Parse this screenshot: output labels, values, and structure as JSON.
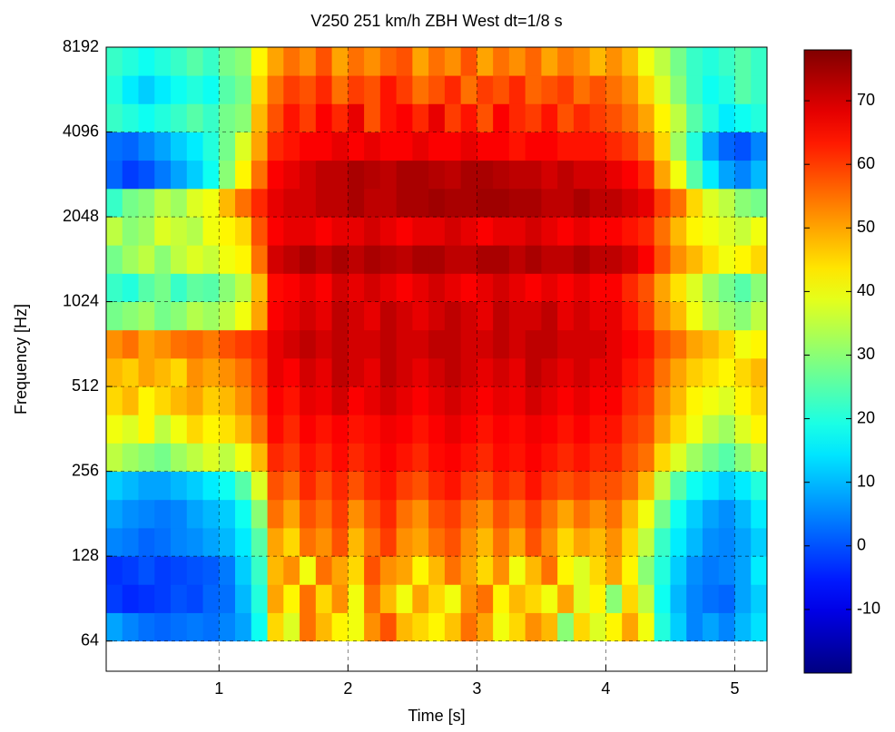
{
  "chart_data": {
    "type": "heatmap",
    "title": "V250 251 km/h ZBH West dt=1/8 s",
    "x_label": "Time [s]",
    "y_label": "Frequency [Hz]",
    "colormap": "jet",
    "yscale": "log2",
    "grid": true,
    "xlim": [
      0.125,
      5.25
    ],
    "xticks": [
      1,
      2,
      3,
      4,
      5
    ],
    "ylim": [
      50,
      8192
    ],
    "yticks": [
      64,
      128,
      256,
      512,
      1024,
      2048,
      4096,
      8192
    ],
    "clim": [
      -20,
      78
    ],
    "cticks": [
      -10,
      0,
      10,
      20,
      30,
      40,
      50,
      60,
      70
    ],
    "xbins": [
      0.125,
      0.25,
      0.375,
      0.5,
      0.625,
      0.75,
      0.875,
      1,
      1.125,
      1.25,
      1.375,
      1.5,
      1.625,
      1.75,
      1.875,
      2,
      2.125,
      2.25,
      2.375,
      2.5,
      2.625,
      2.75,
      2.875,
      3,
      3.125,
      3.25,
      3.375,
      3.5,
      3.625,
      3.75,
      3.875,
      4,
      4.125,
      4.25,
      4.375,
      4.5,
      4.625,
      4.75,
      4.875,
      5,
      5.125,
      5.25
    ],
    "ybins": [
      64,
      80.63,
      101.59,
      128,
      161.27,
      203.19,
      256,
      322.54,
      406.37,
      512,
      645.08,
      812.75,
      1024,
      1290.16,
      1625.5,
      2048,
      2580.3,
      3250.99,
      4096,
      5160.6,
      6501.99,
      8192
    ],
    "values": [
      [
        8,
        5,
        3,
        2,
        3,
        4,
        3,
        5,
        8,
        18,
        45,
        38,
        55,
        48,
        42,
        40,
        52,
        58,
        48,
        45,
        42,
        47,
        55,
        50,
        40,
        45,
        52,
        48,
        30,
        45,
        38,
        42,
        50,
        40,
        20,
        12,
        5,
        8,
        5,
        10,
        14
      ],
      [
        -2,
        -4,
        -3,
        -2,
        0,
        -1,
        2,
        3,
        10,
        20,
        50,
        42,
        55,
        45,
        52,
        40,
        55,
        48,
        40,
        50,
        45,
        40,
        52,
        55,
        42,
        48,
        45,
        40,
        50,
        38,
        42,
        30,
        45,
        35,
        18,
        10,
        5,
        3,
        2,
        8,
        12
      ],
      [
        -3,
        -2,
        0,
        -2,
        -1,
        0,
        1,
        4,
        12,
        22,
        48,
        52,
        40,
        55,
        50,
        45,
        58,
        52,
        50,
        42,
        48,
        55,
        50,
        45,
        52,
        40,
        48,
        55,
        42,
        38,
        45,
        50,
        42,
        30,
        20,
        12,
        6,
        4,
        5,
        8,
        15
      ],
      [
        5,
        4,
        2,
        3,
        5,
        6,
        8,
        10,
        15,
        25,
        50,
        45,
        55,
        52,
        58,
        48,
        55,
        60,
        52,
        50,
        55,
        58,
        52,
        48,
        55,
        50,
        58,
        52,
        45,
        50,
        48,
        52,
        45,
        35,
        22,
        15,
        10,
        6,
        5,
        8,
        12
      ],
      [
        8,
        6,
        5,
        4,
        5,
        8,
        10,
        12,
        18,
        30,
        55,
        50,
        58,
        55,
        60,
        52,
        58,
        62,
        55,
        52,
        58,
        60,
        55,
        52,
        58,
        55,
        60,
        55,
        50,
        55,
        52,
        55,
        48,
        40,
        28,
        18,
        12,
        8,
        6,
        10,
        15
      ],
      [
        12,
        10,
        8,
        8,
        10,
        12,
        15,
        18,
        25,
        38,
        58,
        55,
        62,
        58,
        62,
        58,
        62,
        64,
        60,
        58,
        62,
        64,
        60,
        58,
        62,
        60,
        64,
        60,
        58,
        60,
        58,
        58,
        55,
        48,
        35,
        25,
        18,
        15,
        12,
        15,
        20
      ],
      [
        35,
        32,
        30,
        28,
        32,
        35,
        38,
        35,
        40,
        48,
        62,
        60,
        64,
        62,
        65,
        62,
        64,
        66,
        64,
        62,
        65,
        66,
        64,
        62,
        65,
        64,
        66,
        64,
        62,
        64,
        62,
        62,
        58,
        55,
        45,
        38,
        32,
        28,
        25,
        30,
        35
      ],
      [
        40,
        38,
        42,
        35,
        40,
        45,
        42,
        44,
        48,
        55,
        65,
        62,
        66,
        64,
        66,
        64,
        65,
        67,
        66,
        64,
        66,
        68,
        66,
        64,
        66,
        65,
        67,
        66,
        64,
        66,
        64,
        64,
        60,
        58,
        50,
        45,
        40,
        35,
        32,
        38,
        42
      ],
      [
        45,
        48,
        42,
        45,
        48,
        50,
        46,
        48,
        52,
        58,
        66,
        64,
        68,
        67,
        70,
        66,
        68,
        70,
        68,
        66,
        68,
        70,
        68,
        66,
        68,
        67,
        70,
        68,
        66,
        68,
        66,
        66,
        62,
        60,
        52,
        48,
        42,
        40,
        38,
        42,
        45
      ],
      [
        48,
        46,
        50,
        48,
        45,
        52,
        50,
        52,
        55,
        60,
        68,
        66,
        70,
        68,
        72,
        70,
        68,
        72,
        70,
        68,
        70,
        72,
        70,
        68,
        70,
        68,
        72,
        70,
        68,
        70,
        68,
        68,
        64,
        62,
        55,
        50,
        46,
        44,
        42,
        45,
        48
      ],
      [
        52,
        55,
        50,
        52,
        55,
        56,
        54,
        58,
        60,
        62,
        68,
        70,
        72,
        70,
        72,
        70,
        70,
        72,
        70,
        70,
        72,
        72,
        70,
        70,
        72,
        70,
        72,
        72,
        70,
        70,
        70,
        68,
        66,
        64,
        58,
        55,
        50,
        48,
        45,
        40,
        42
      ],
      [
        28,
        30,
        32,
        28,
        30,
        34,
        32,
        35,
        40,
        50,
        66,
        68,
        70,
        68,
        72,
        70,
        68,
        72,
        70,
        68,
        70,
        72,
        70,
        68,
        72,
        70,
        70,
        72,
        68,
        70,
        68,
        68,
        64,
        60,
        52,
        48,
        40,
        35,
        32,
        30,
        35
      ],
      [
        22,
        20,
        25,
        28,
        22,
        26,
        25,
        30,
        35,
        48,
        65,
        66,
        68,
        66,
        70,
        68,
        70,
        68,
        66,
        68,
        70,
        68,
        66,
        68,
        70,
        68,
        66,
        68,
        66,
        68,
        66,
        66,
        62,
        58,
        50,
        44,
        38,
        32,
        28,
        25,
        30
      ],
      [
        28,
        32,
        35,
        30,
        35,
        38,
        36,
        40,
        42,
        55,
        70,
        72,
        74,
        72,
        74,
        72,
        74,
        73,
        72,
        74,
        74,
        72,
        72,
        74,
        74,
        72,
        74,
        72,
        72,
        74,
        72,
        72,
        70,
        66,
        58,
        52,
        48,
        44,
        40,
        42,
        45
      ],
      [
        35,
        30,
        32,
        38,
        36,
        34,
        40,
        42,
        45,
        58,
        66,
        68,
        68,
        66,
        68,
        68,
        70,
        68,
        66,
        68,
        68,
        70,
        68,
        66,
        68,
        68,
        70,
        68,
        66,
        68,
        66,
        66,
        64,
        62,
        55,
        48,
        42,
        40,
        38,
        36,
        40
      ],
      [
        22,
        28,
        30,
        35,
        32,
        38,
        40,
        48,
        55,
        62,
        68,
        70,
        70,
        72,
        72,
        74,
        72,
        72,
        74,
        74,
        75,
        74,
        74,
        75,
        75,
        74,
        74,
        72,
        72,
        74,
        72,
        72,
        70,
        68,
        60,
        55,
        45,
        38,
        35,
        30,
        28
      ],
      [
        2,
        -2,
        0,
        4,
        8,
        12,
        18,
        30,
        42,
        55,
        66,
        68,
        70,
        72,
        72,
        74,
        73,
        72,
        74,
        74,
        73,
        72,
        74,
        74,
        73,
        72,
        72,
        70,
        72,
        70,
        70,
        68,
        66,
        62,
        50,
        40,
        25,
        15,
        8,
        5,
        10
      ],
      [
        3,
        2,
        5,
        8,
        12,
        15,
        20,
        28,
        38,
        50,
        62,
        64,
        66,
        66,
        68,
        66,
        68,
        66,
        66,
        68,
        66,
        66,
        68,
        66,
        66,
        64,
        66,
        66,
        64,
        64,
        64,
        62,
        60,
        55,
        45,
        32,
        20,
        8,
        2,
        0,
        5
      ],
      [
        22,
        20,
        18,
        20,
        22,
        25,
        22,
        28,
        30,
        48,
        58,
        64,
        60,
        66,
        62,
        68,
        58,
        64,
        66,
        62,
        68,
        60,
        64,
        58,
        66,
        62,
        60,
        64,
        58,
        62,
        60,
        58,
        55,
        50,
        42,
        35,
        25,
        20,
        15,
        18,
        20
      ],
      [
        20,
        15,
        12,
        15,
        18,
        20,
        18,
        25,
        28,
        45,
        55,
        60,
        58,
        62,
        55,
        60,
        58,
        64,
        60,
        55,
        58,
        62,
        55,
        60,
        58,
        62,
        56,
        58,
        60,
        55,
        58,
        55,
        52,
        45,
        38,
        30,
        22,
        18,
        20,
        25,
        22
      ],
      [
        22,
        20,
        18,
        20,
        22,
        25,
        22,
        28,
        30,
        42,
        50,
        55,
        52,
        58,
        50,
        55,
        52,
        56,
        58,
        50,
        55,
        52,
        58,
        50,
        55,
        52,
        56,
        50,
        54,
        52,
        48,
        52,
        48,
        40,
        35,
        28,
        22,
        20,
        22,
        25,
        22
      ]
    ]
  }
}
